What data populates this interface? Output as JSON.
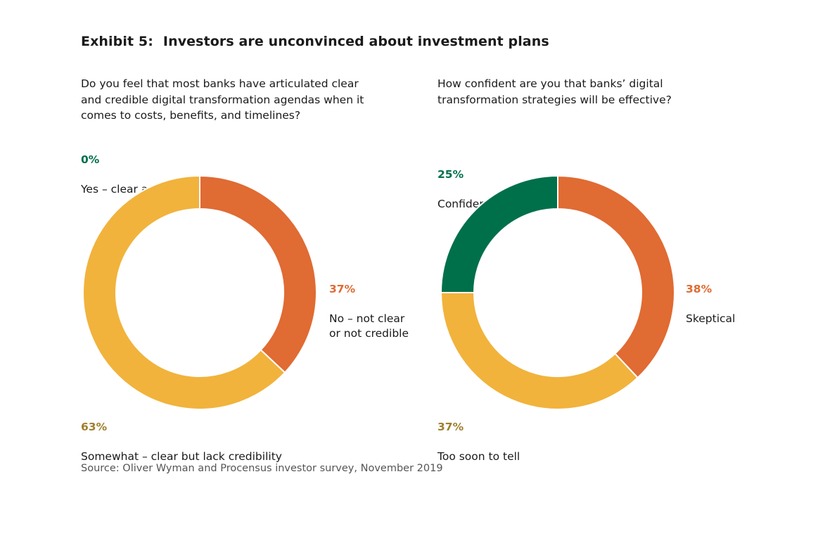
{
  "title": {
    "exhibit": "Exhibit 5:",
    "text": "Investors are unconvinced about investment plans"
  },
  "source": "Source: Oliver Wyman and Procensus investor survey, November 2019",
  "colors": {
    "orange": "#E06B33",
    "yellow": "#F1B33C",
    "green": "#00704A",
    "label_yellow": "#A07F2E"
  },
  "chart_data": [
    {
      "type": "pie",
      "variant": "donut",
      "title": "Do you feel that most banks have articulated clear\nand credible digital transformation agendas when it\ncomes to costs, benefits, and timelines?",
      "slices": [
        {
          "label": "Yes – clear and credible",
          "value": 0,
          "value_label": "0%",
          "color": "#00704A"
        },
        {
          "label": "No – not clear\nor not credible",
          "value": 37,
          "value_label": "37%",
          "color": "#E06B33"
        },
        {
          "label": "Somewhat – clear but lack credibility",
          "value": 63,
          "value_label": "63%",
          "color": "#F1B33C"
        }
      ]
    },
    {
      "type": "pie",
      "variant": "donut",
      "title": "How confident are you that banks’ digital\ntransformation strategies will be effective?",
      "slices": [
        {
          "label": "Skeptical",
          "value": 38,
          "value_label": "38%",
          "color": "#E06B33"
        },
        {
          "label": "Too soon to tell",
          "value": 37,
          "value_label": "37%",
          "color": "#F1B33C"
        },
        {
          "label": "Confident",
          "value": 25,
          "value_label": "25%",
          "color": "#00704A"
        }
      ]
    }
  ]
}
